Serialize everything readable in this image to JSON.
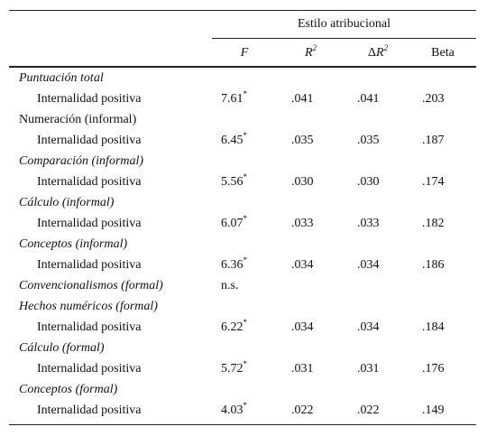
{
  "header": {
    "group": "Estilo atribucional",
    "columns": [
      {
        "text": "F",
        "italic": true
      },
      {
        "text": "R",
        "sup": "2",
        "italic": true
      },
      {
        "text": "Δ",
        "base": "R",
        "sup": "2"
      },
      {
        "text": "Beta"
      }
    ]
  },
  "rows": [
    {
      "group": "Puntuación total",
      "italic": true,
      "sub": {
        "label": "Internalidad positiva",
        "cells": [
          {
            "text": "7.61",
            "sup": "*"
          },
          ".041",
          ".041",
          ".203"
        ]
      }
    },
    {
      "group": "Numeración (informal)",
      "italic": false,
      "sub": {
        "label": "Internalidad positiva",
        "cells": [
          {
            "text": "6.45",
            "sup": "*"
          },
          ".035",
          ".035",
          ".187"
        ]
      }
    },
    {
      "group": "Comparación (informal)",
      "italic": true,
      "sub": {
        "label": "Internalidad positiva",
        "cells": [
          {
            "text": "5.56",
            "sup": "*"
          },
          ".030",
          ".030",
          ".174"
        ]
      }
    },
    {
      "group": "Cálculo (informal)",
      "italic": true,
      "sub": {
        "label": "Internalidad positiva",
        "cells": [
          {
            "text": "6.07",
            "sup": "*"
          },
          ".033",
          ".033",
          ".182"
        ]
      }
    },
    {
      "group": "Conceptos (informal)",
      "italic": true,
      "sub": {
        "label": "Internalidad positiva",
        "cells": [
          {
            "text": "6.36",
            "sup": "*"
          },
          ".034",
          ".034",
          ".186"
        ]
      }
    },
    {
      "group": "Convencionalismos (formal)",
      "italic": true,
      "cells": [
        "n.s."
      ]
    },
    {
      "group": "Hechos numéricos (formal)",
      "italic": true,
      "sub": {
        "label": "Internalidad positiva",
        "cells": [
          {
            "text": "6.22",
            "sup": "*"
          },
          ".034",
          ".034",
          ".184"
        ]
      }
    },
    {
      "group": "Cálculo (formal)",
      "italic": true,
      "sub": {
        "label": "Internalidad positiva",
        "cells": [
          {
            "text": "5.72",
            "sup": "*"
          },
          ".031",
          ".031",
          ".176"
        ]
      }
    },
    {
      "group": "Conceptos (formal)",
      "italic": true,
      "sub": {
        "label": "Internalidad positiva",
        "cells": [
          {
            "text": "4.03",
            "sup": "*"
          },
          ".022",
          ".022",
          ".149"
        ]
      }
    }
  ]
}
